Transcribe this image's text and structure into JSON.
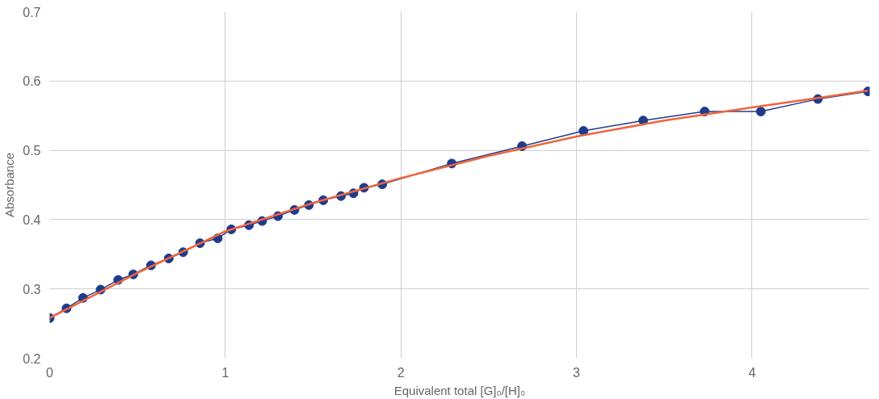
{
  "chart_data": {
    "type": "line",
    "xlabel": "Equivalent total [G]₀/[H]₀",
    "ylabel": "Absorbance",
    "xlim": [
      0,
      4.67
    ],
    "ylim": [
      0.2,
      0.7
    ],
    "xticks": [
      0,
      1,
      2,
      3,
      4
    ],
    "yticks": [
      0.2,
      0.3,
      0.4,
      0.5,
      0.6,
      0.7
    ],
    "grid": true,
    "line_style": "solid",
    "series": [
      {
        "color": "#1f3b8c",
        "marker": "circle",
        "x": [
          0,
          0.096,
          0.19,
          0.29,
          0.39,
          0.476,
          0.577,
          0.678,
          0.76,
          0.856,
          0.957,
          1.034,
          1.135,
          1.21,
          1.3,
          1.394,
          1.476,
          1.558,
          1.659,
          1.73,
          1.79,
          1.894,
          2.29,
          2.69,
          3.04,
          3.38,
          3.73,
          4.05,
          4.375,
          4.66
        ],
        "values": [
          0.258,
          0.272,
          0.287,
          0.299,
          0.313,
          0.321,
          0.334,
          0.344,
          0.353,
          0.366,
          0.373,
          0.386,
          0.392,
          0.398,
          0.405,
          0.414,
          0.421,
          0.428,
          0.434,
          0.438,
          0.446,
          0.451,
          0.481,
          0.506,
          0.528,
          0.543,
          0.556,
          0.556,
          0.574,
          0.585
        ]
      },
      {
        "color": "#f0653c",
        "marker": "none",
        "x": [
          0,
          0.5,
          1,
          1.5,
          2,
          2.5,
          3,
          3.5,
          4,
          4.66
        ],
        "values": [
          0.258,
          0.323,
          0.383,
          0.424,
          0.46,
          0.492,
          0.52,
          0.543,
          0.562,
          0.586
        ]
      }
    ]
  }
}
